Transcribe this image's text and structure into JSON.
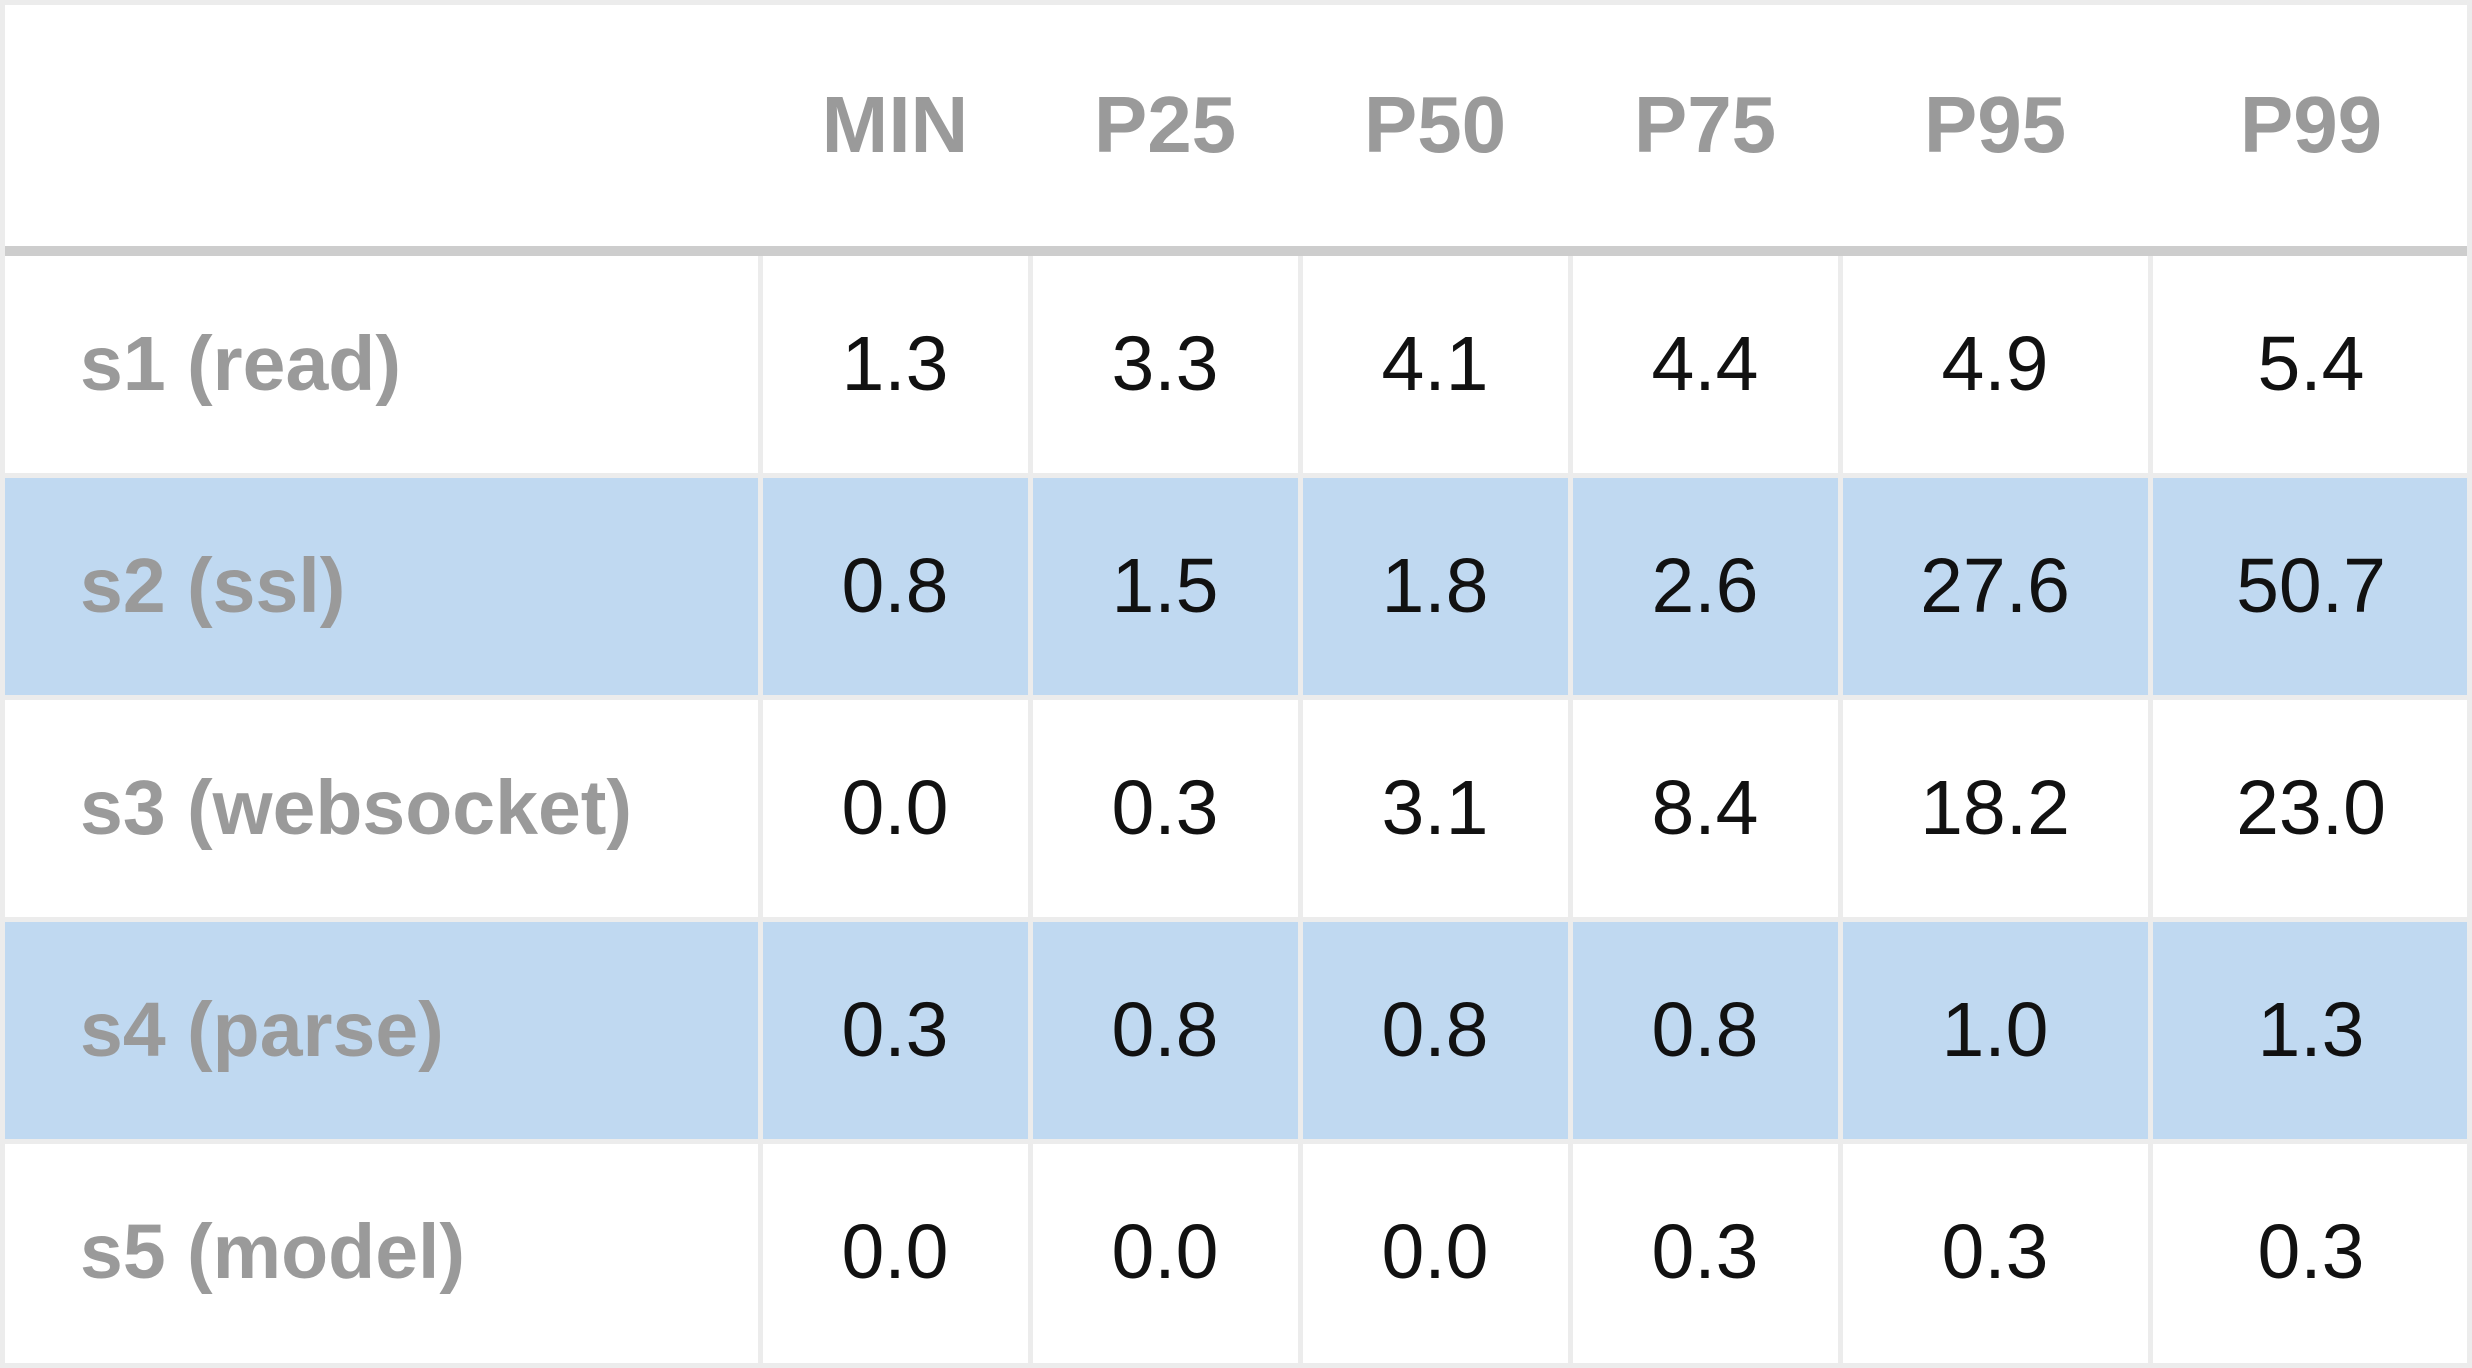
{
  "chart_data": {
    "type": "table",
    "columns": [
      "MIN",
      "P25",
      "P50",
      "P75",
      "P95",
      "P99"
    ],
    "rows": [
      {
        "label": "s1 (read)",
        "values": [
          "1.3",
          "3.3",
          "4.1",
          "4.4",
          "4.9",
          "5.4"
        ],
        "highlight": false
      },
      {
        "label": "s2 (ssl)",
        "values": [
          "0.8",
          "1.5",
          "1.8",
          "2.6",
          "27.6",
          "50.7"
        ],
        "highlight": true
      },
      {
        "label": "s3 (websocket)",
        "values": [
          "0.0",
          "0.3",
          "3.1",
          "8.4",
          "18.2",
          "23.0"
        ],
        "highlight": false
      },
      {
        "label": "s4 (parse)",
        "values": [
          "0.3",
          "0.8",
          "0.8",
          "0.8",
          "1.0",
          "1.3"
        ],
        "highlight": true
      },
      {
        "label": "s5 (model)",
        "values": [
          "0.0",
          "0.0",
          "0.0",
          "0.3",
          "0.3",
          "0.3"
        ],
        "highlight": false
      }
    ]
  },
  "colors": {
    "highlight_row": "#c0d9f1",
    "header_text": "#9a9a9a",
    "row_label_text": "#9a9a9a",
    "value_text": "#111111",
    "grid": "#ececec",
    "header_rule": "#cdcdcd"
  }
}
